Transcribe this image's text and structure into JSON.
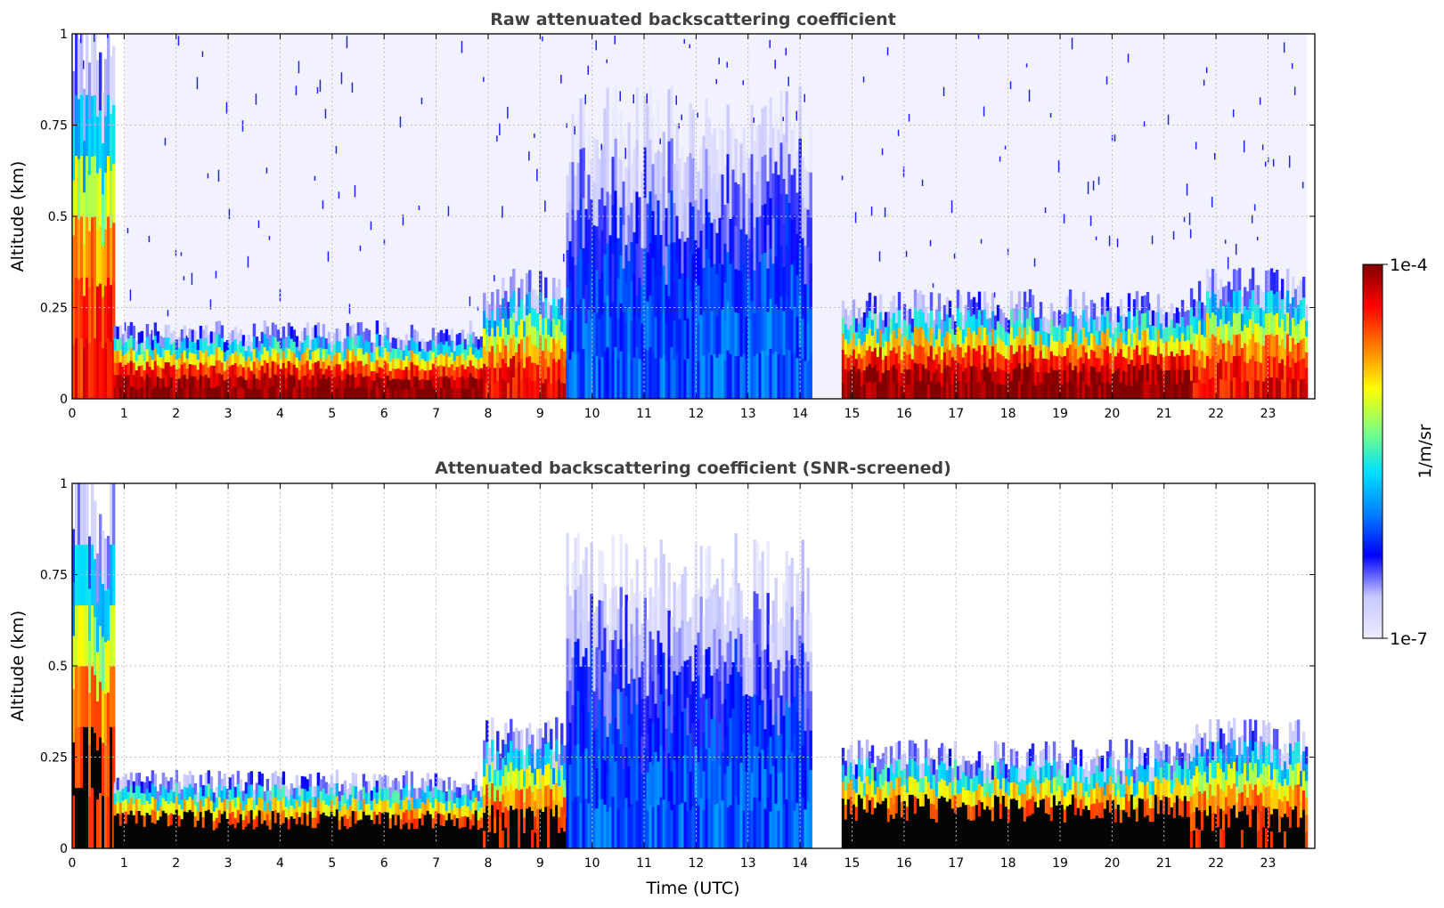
{
  "chart_data": [
    {
      "type": "heatmap",
      "title": "Raw attenuated backscattering coefficient",
      "xlabel": "",
      "ylabel": "Altitude (km)",
      "xlim": [
        0,
        23.9
      ],
      "ylim": [
        0,
        1
      ],
      "x_ticks": [
        "0",
        "1",
        "2",
        "3",
        "4",
        "5",
        "6",
        "7",
        "8",
        "9",
        "10",
        "11",
        "12",
        "13",
        "14",
        "15",
        "16",
        "17",
        "18",
        "19",
        "20",
        "21",
        "22",
        "23"
      ],
      "y_ticks": [
        "0",
        "0.25",
        "0.5",
        "0.75",
        "1"
      ],
      "grid": true,
      "colorscale": "jet (log)",
      "features": [
        {
          "t_start": 0.0,
          "t_end": 0.8,
          "top_km": 0.95,
          "level": 0.88
        },
        {
          "t_start": 0.8,
          "t_end": 7.9,
          "top_km": 0.18,
          "level": 1.0
        },
        {
          "t_start": 7.9,
          "t_end": 9.5,
          "top_km": 0.3,
          "level": 0.9
        },
        {
          "t_start": 9.5,
          "t_end": 14.2,
          "top_km": 0.72,
          "level": 0.3
        },
        {
          "t_start": 14.8,
          "t_end": 21.5,
          "top_km": 0.25,
          "level": 1.0
        },
        {
          "t_start": 21.5,
          "t_end": 23.75,
          "top_km": 0.3,
          "level": 0.9
        }
      ]
    },
    {
      "type": "heatmap",
      "title": "Attenuated backscattering coefficient (SNR-screened)",
      "xlabel": "Time (UTC)",
      "ylabel": "Altitude (km)",
      "xlim": [
        0,
        23.9
      ],
      "ylim": [
        0,
        1
      ],
      "x_ticks": [
        "0",
        "1",
        "2",
        "3",
        "4",
        "5",
        "6",
        "7",
        "8",
        "9",
        "10",
        "11",
        "12",
        "13",
        "14",
        "15",
        "16",
        "17",
        "18",
        "19",
        "20",
        "21",
        "22",
        "23"
      ],
      "y_ticks": [
        "0",
        "0.25",
        "0.5",
        "0.75",
        "1"
      ],
      "grid": true,
      "colorscale": "jet (log), saturated values shown black",
      "features": [
        {
          "t_start": 0.0,
          "t_end": 0.8,
          "top_km": 0.95,
          "level": 0.88
        },
        {
          "t_start": 0.8,
          "t_end": 7.9,
          "top_km": 0.18,
          "level": 1.0
        },
        {
          "t_start": 7.9,
          "t_end": 9.5,
          "top_km": 0.3,
          "level": 0.9
        },
        {
          "t_start": 9.5,
          "t_end": 14.2,
          "top_km": 0.72,
          "level": 0.3
        },
        {
          "t_start": 14.8,
          "t_end": 21.5,
          "top_km": 0.25,
          "level": 1.0
        },
        {
          "t_start": 21.5,
          "t_end": 23.75,
          "top_km": 0.3,
          "level": 0.9
        }
      ]
    }
  ],
  "colorbar": {
    "label": "1/m/sr",
    "min_label": "1e-7",
    "max_label": "1e-4",
    "scale": "log",
    "colors": [
      "#ebebff",
      "#c8c8ff",
      "#0000ff",
      "#0080ff",
      "#00e0ff",
      "#80ff80",
      "#ffff00",
      "#ff8000",
      "#ff0000",
      "#800000"
    ]
  }
}
